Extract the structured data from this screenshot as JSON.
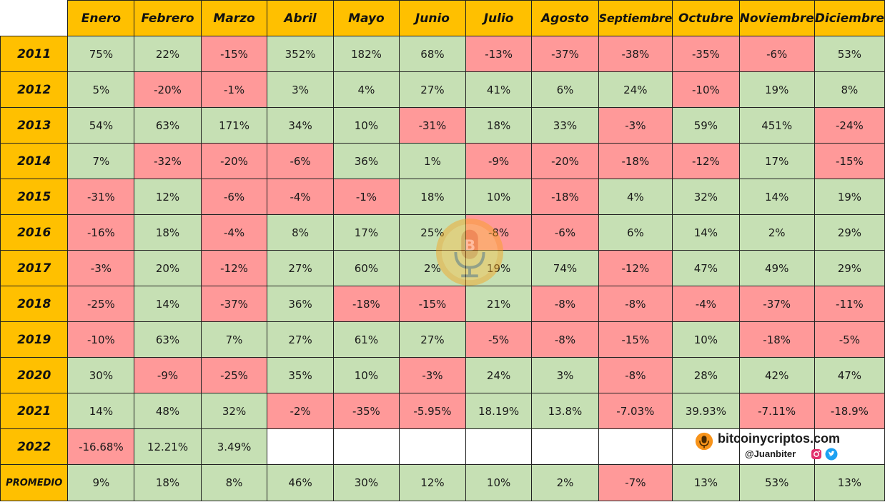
{
  "chart_data": {
    "type": "table",
    "columns": [
      "Enero",
      "Febrero",
      "Marzo",
      "Abril",
      "Mayo",
      "Junio",
      "Julio",
      "Agosto",
      "Septiembre",
      "Octubre",
      "Noviembre",
      "Diciembre"
    ],
    "rows": [
      {
        "label": "2011",
        "values": [
          "75%",
          "22%",
          "-15%",
          "352%",
          "182%",
          "68%",
          "-13%",
          "-37%",
          "-38%",
          "-35%",
          "-6%",
          "53%"
        ]
      },
      {
        "label": "2012",
        "values": [
          "5%",
          "-20%",
          "-1%",
          "3%",
          "4%",
          "27%",
          "41%",
          "6%",
          "24%",
          "-10%",
          "19%",
          "8%"
        ]
      },
      {
        "label": "2013",
        "values": [
          "54%",
          "63%",
          "171%",
          "34%",
          "10%",
          "-31%",
          "18%",
          "33%",
          "-3%",
          "59%",
          "451%",
          "-24%"
        ]
      },
      {
        "label": "2014",
        "values": [
          "7%",
          "-32%",
          "-20%",
          "-6%",
          "36%",
          "1%",
          "-9%",
          "-20%",
          "-18%",
          "-12%",
          "17%",
          "-15%"
        ]
      },
      {
        "label": "2015",
        "values": [
          "-31%",
          "12%",
          "-6%",
          "-4%",
          "-1%",
          "18%",
          "10%",
          "-18%",
          "4%",
          "32%",
          "14%",
          "19%"
        ]
      },
      {
        "label": "2016",
        "values": [
          "-16%",
          "18%",
          "-4%",
          "8%",
          "17%",
          "25%",
          "-8%",
          "-6%",
          "6%",
          "14%",
          "2%",
          "29%"
        ]
      },
      {
        "label": "2017",
        "values": [
          "-3%",
          "20%",
          "-12%",
          "27%",
          "60%",
          "2%",
          "19%",
          "74%",
          "-12%",
          "47%",
          "49%",
          "29%"
        ]
      },
      {
        "label": "2018",
        "values": [
          "-25%",
          "14%",
          "-37%",
          "36%",
          "-18%",
          "-15%",
          "21%",
          "-8%",
          "-8%",
          "-4%",
          "-37%",
          "-11%"
        ]
      },
      {
        "label": "2019",
        "values": [
          "-10%",
          "63%",
          "7%",
          "27%",
          "61%",
          "27%",
          "-5%",
          "-8%",
          "-15%",
          "10%",
          "-18%",
          "-5%"
        ]
      },
      {
        "label": "2020",
        "values": [
          "30%",
          "-9%",
          "-25%",
          "35%",
          "10%",
          "-3%",
          "24%",
          "3%",
          "-8%",
          "28%",
          "42%",
          "47%"
        ]
      },
      {
        "label": "2021",
        "values": [
          "14%",
          "48%",
          "32%",
          "-2%",
          "-35%",
          "-5.95%",
          "18.19%",
          "13.8%",
          "-7.03%",
          "39.93%",
          "-7.11%",
          "-18.9%"
        ]
      },
      {
        "label": "2022",
        "values": [
          "-16.68%",
          "12.21%",
          "3.49%",
          "",
          "",
          "",
          "",
          "",
          "",
          "",
          "",
          ""
        ]
      },
      {
        "label": "PROMEDIO",
        "values": [
          "9%",
          "18%",
          "8%",
          "46%",
          "30%",
          "12%",
          "10%",
          "2%",
          "-7%",
          "13%",
          "53%",
          "13%"
        ]
      }
    ],
    "colors": {
      "positive": "#c6e0b4",
      "negative": "#ff9999",
      "header": "#ffc000",
      "empty": "#ffffff"
    }
  },
  "brand": {
    "site": "bitcoinycriptos.com",
    "handle": "@Juanbiter",
    "icons": [
      "bitcoin-podcast-icon",
      "instagram-icon",
      "twitter-icon"
    ]
  }
}
